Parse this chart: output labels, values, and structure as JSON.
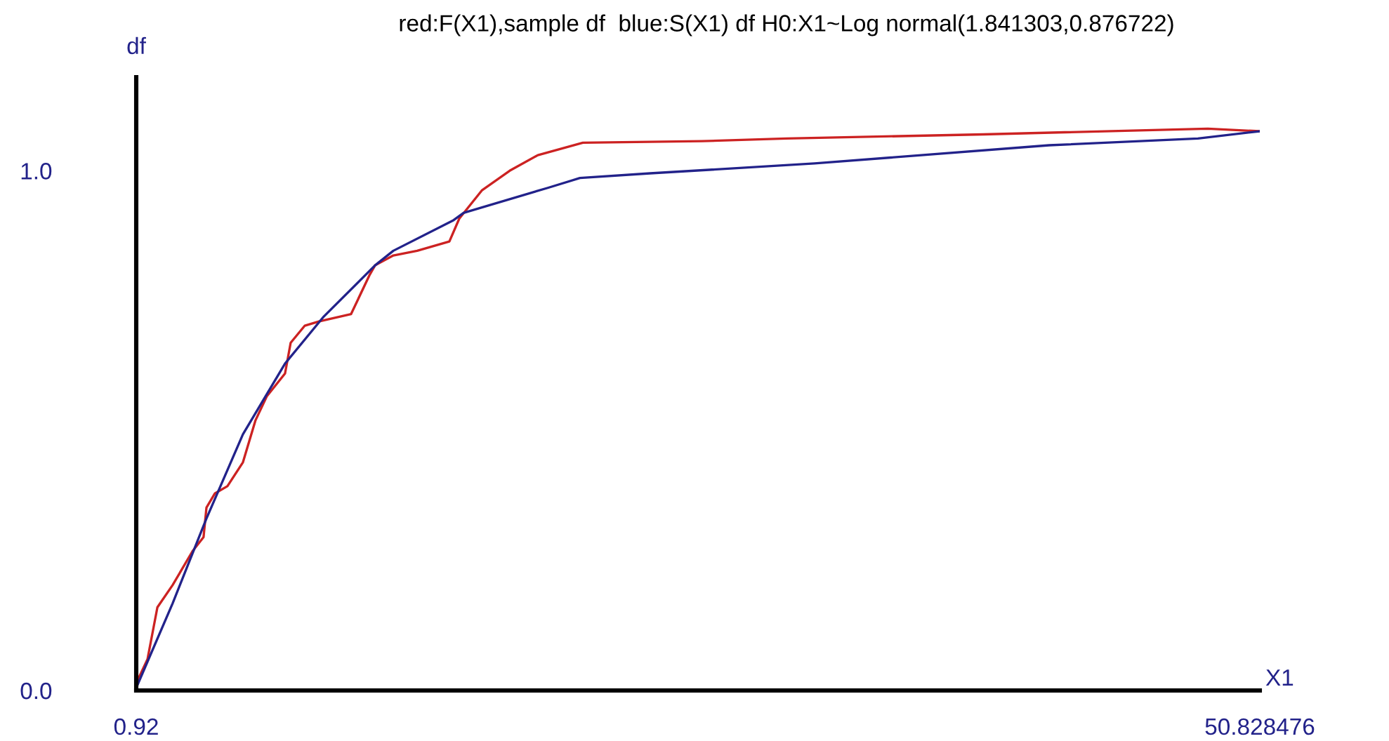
{
  "chart_data": {
    "type": "line",
    "title": "red:F(X1),sample df  blue:S(X1) df H0:X1~Log normal(1.841303,0.876722)",
    "xlabel": "X1",
    "ylabel": "df",
    "series": [
      {
        "color": "#cc2222",
        "x": [
          0.92,
          1.42,
          1.86,
          2.54,
          3.42,
          3.91,
          4.04,
          4.41,
          4.97,
          5.66,
          6.22,
          6.72,
          7.53,
          7.78,
          8.41,
          9.03,
          10.46,
          11.28,
          11.53,
          12.34,
          13.4,
          14.83,
          15.27,
          16.27,
          17.51,
          18.76,
          20.76,
          26.06,
          29.8,
          38.54,
          48.52,
          50.82
        ],
        "values": [
          0.014,
          0.06,
          0.16,
          0.203,
          0.268,
          0.295,
          0.352,
          0.379,
          0.393,
          0.439,
          0.52,
          0.566,
          0.61,
          0.669,
          0.702,
          0.71,
          0.724,
          0.799,
          0.818,
          0.837,
          0.846,
          0.864,
          0.908,
          0.962,
          1.0,
          1.03,
          1.054,
          1.057,
          1.062,
          1.07,
          1.081,
          1.076
        ]
      },
      {
        "color": "#22228a",
        "x": [
          0.92,
          2.54,
          4.04,
          5.66,
          7.53,
          9.22,
          11.53,
          12.34,
          15.02,
          15.46,
          19.2,
          20.63,
          23.75,
          31.05,
          41.47,
          48.08,
          50.82
        ],
        "values": [
          0.005,
          0.168,
          0.331,
          0.493,
          0.629,
          0.718,
          0.818,
          0.846,
          0.905,
          0.919,
          0.967,
          0.986,
          0.995,
          1.014,
          1.049,
          1.062,
          1.076
        ]
      }
    ],
    "xlim": [
      0.92,
      50.828476
    ],
    "ylim": [
      0,
      1.18
    ],
    "xticks": [
      0.92,
      50.828476
    ],
    "yticks": [
      {
        "value": 0,
        "label": "0.0"
      },
      {
        "value": 1,
        "label": "1.0"
      }
    ],
    "grid": false,
    "legend": false
  }
}
